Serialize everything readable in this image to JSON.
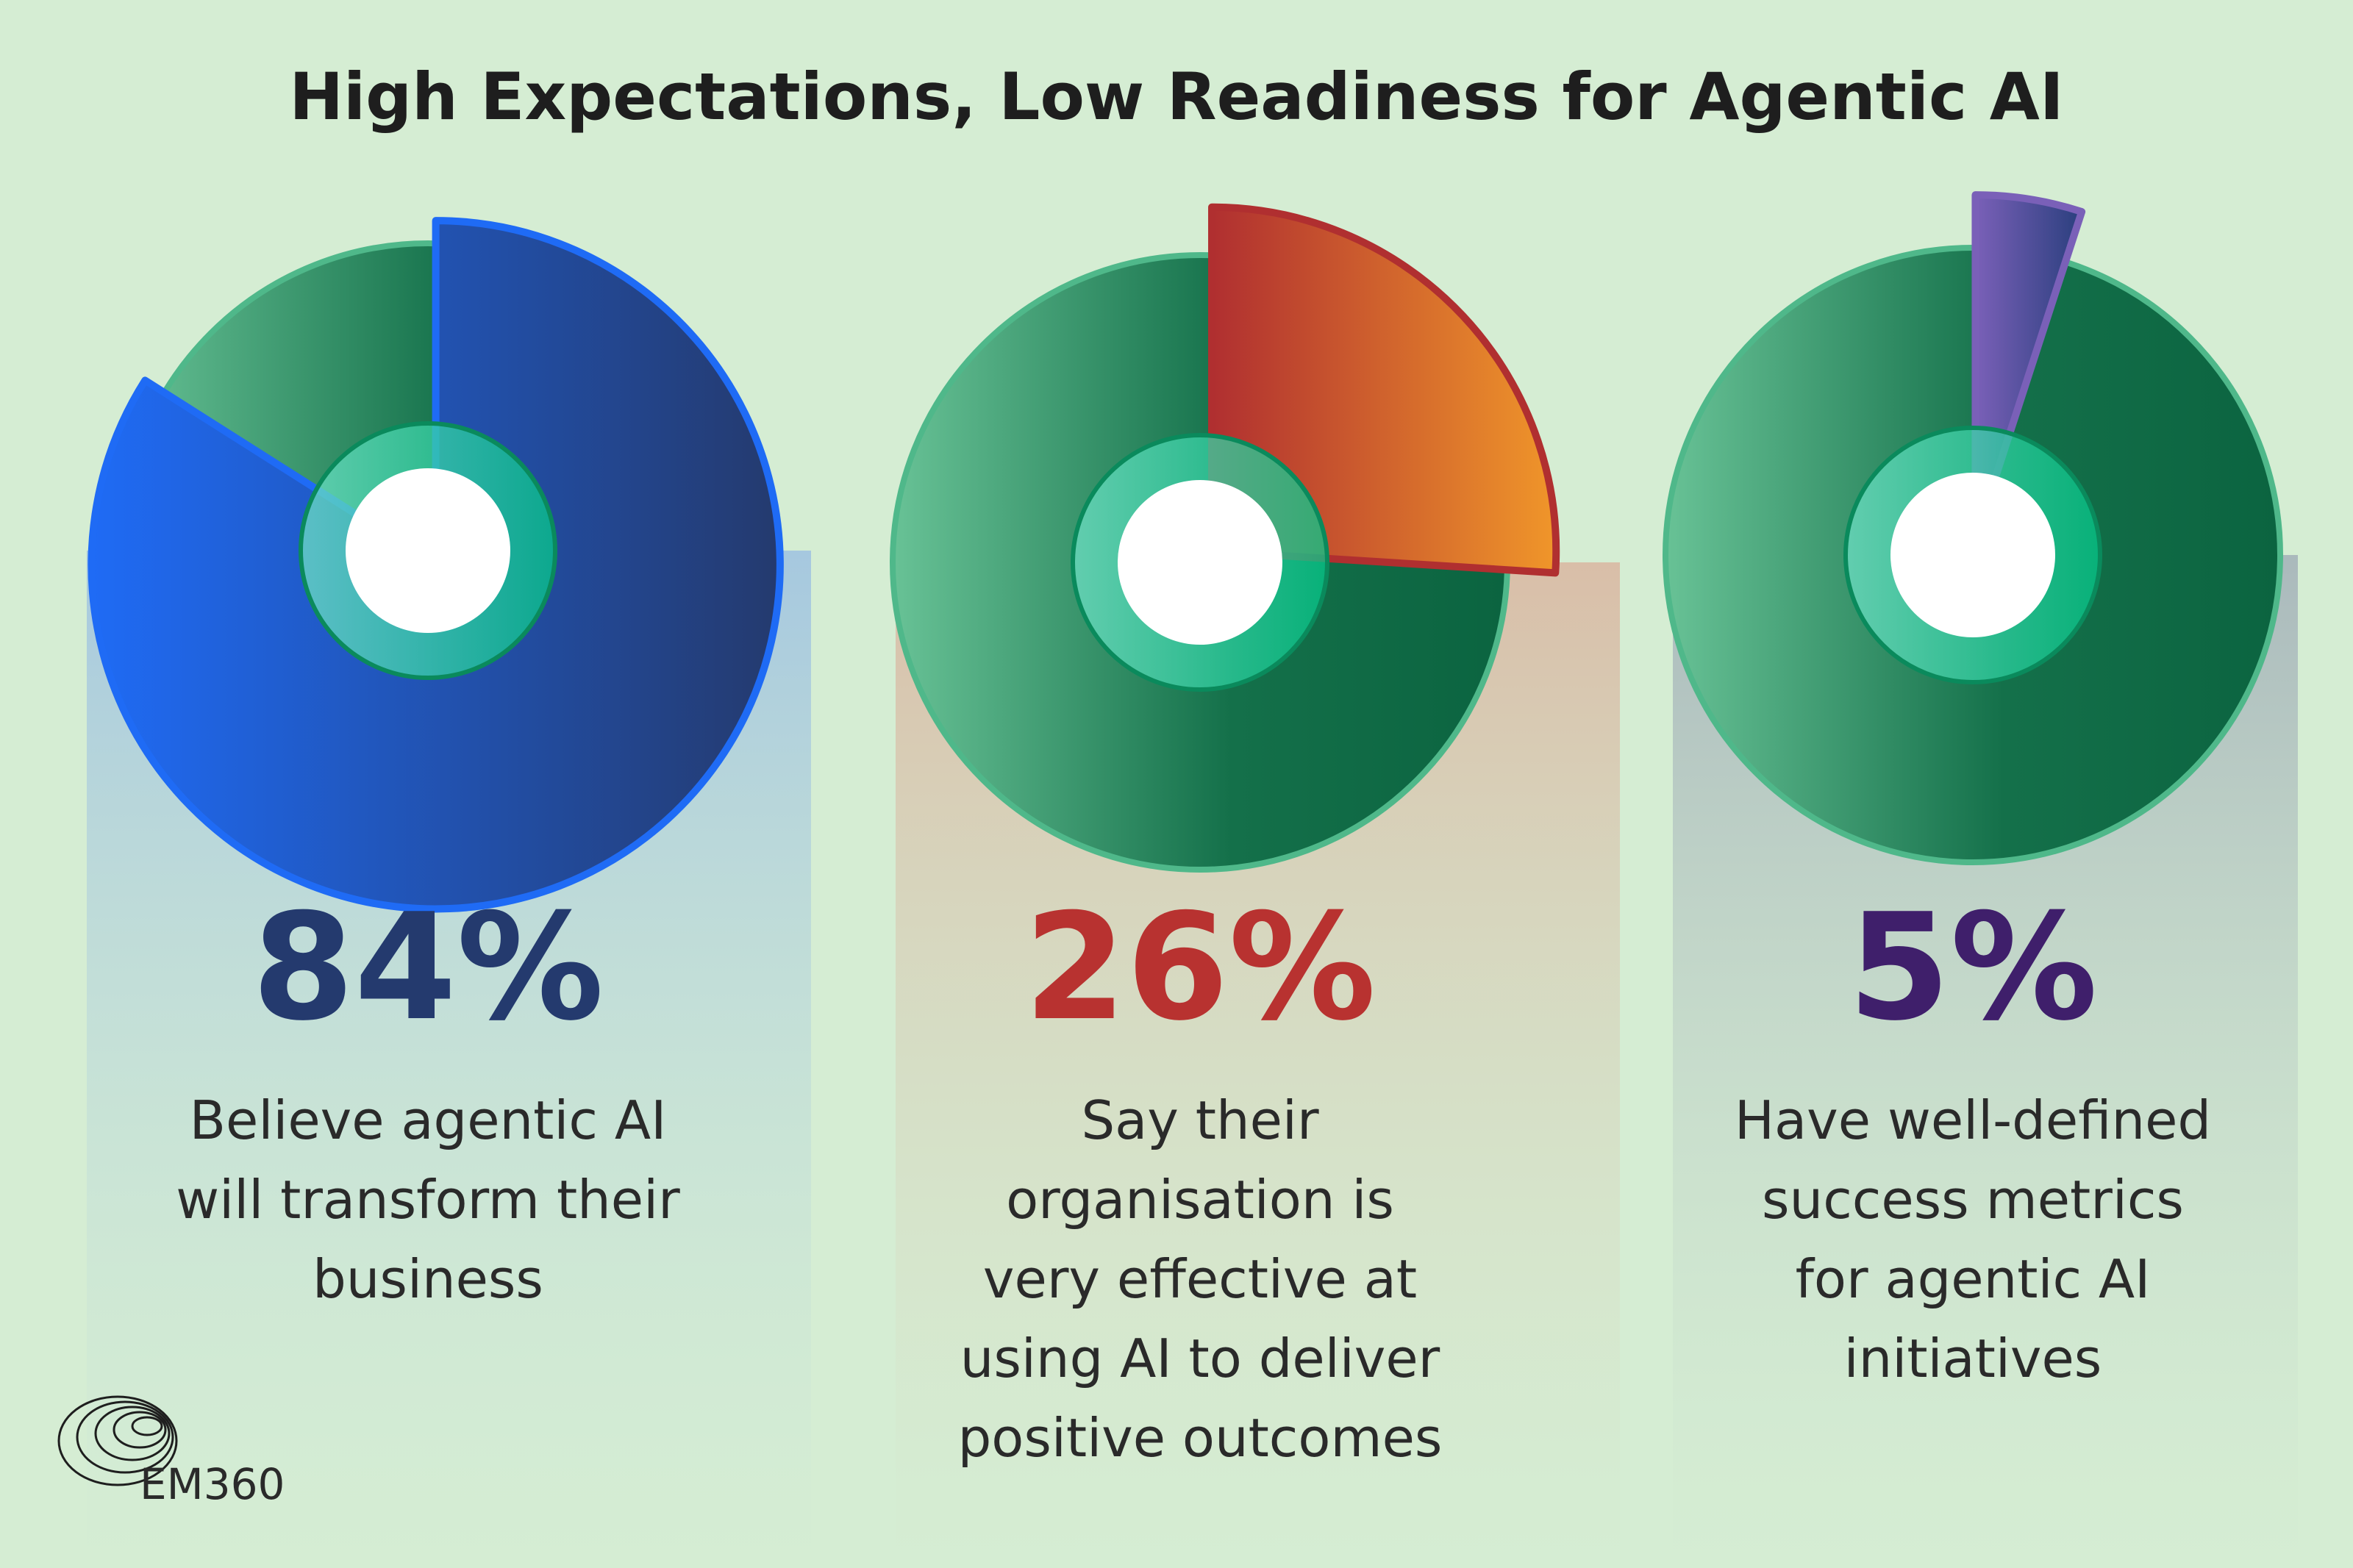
{
  "title": "High Expectations, Low Readiness for Agentic AI",
  "logo": "EM360",
  "chart_data": [
    {
      "type": "pie",
      "values": [
        84
      ],
      "value_labels": [
        "84%"
      ],
      "caption": "Believe agentic AI\nwill transform their\nbusiness",
      "color": [
        "#1f6bf5",
        "#243a6e"
      ],
      "label_color": "#243a6e",
      "panel_color": "#a6c8df"
    },
    {
      "type": "pie",
      "values": [
        26
      ],
      "value_labels": [
        "26%"
      ],
      "caption": "Say their\norganisation is\nvery effective at\nusing AI to deliver\npositive outcomes",
      "color": [
        "#b02f30",
        "#f0962a"
      ],
      "label_color": "#b83230",
      "panel_color": "#d9bea8"
    },
    {
      "type": "pie",
      "values": [
        5
      ],
      "value_labels": [
        "5%"
      ],
      "caption": "Have well-defined\nsuccess metrics\nfor agentic AI\ninitiatives",
      "color": [
        "#7a60b8",
        "#2a3f7e"
      ],
      "label_color": "#3f1f6b",
      "panel_color": "#aab9bc"
    }
  ]
}
